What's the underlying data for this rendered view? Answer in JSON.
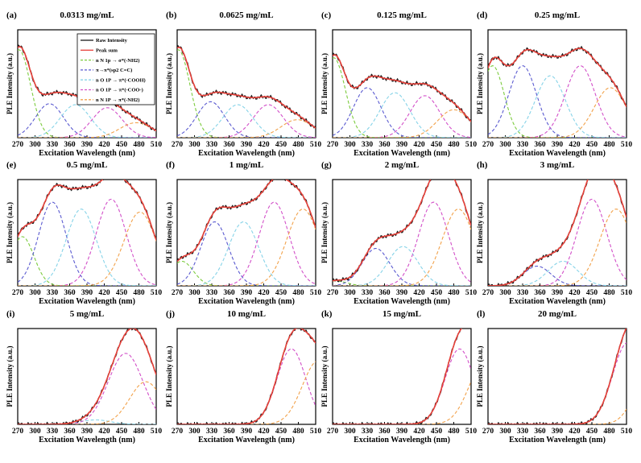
{
  "figure": {
    "colors": {
      "raw": "#1a1a1a",
      "sum": "#e8413a",
      "nh2_a": "#7ccb3e",
      "sp2": "#5a5ad0",
      "cooh": "#86d3e8",
      "coo": "#d24fc8",
      "nh2_b": "#f2a24b"
    }
  },
  "chart_data": [
    {
      "label": "(a)",
      "title": "0.0313 mg/mL",
      "type": "line",
      "xlabel": "Excitation Wavelength (nm)",
      "ylabel": "PLE Intensity (a.u.)",
      "xlim": [
        270,
        510
      ],
      "ylim": [
        0,
        1.08
      ],
      "xticks": [
        "270",
        "300",
        "330",
        "360",
        "390",
        "420",
        "450",
        "480",
        "510"
      ],
      "legend": {
        "position": "top-right",
        "entries": [
          "Raw Intensity",
          "Peak sum",
          "n N 1p → σ*(-NH2)",
          "π→π*(sp2 C=C)",
          "n O 1P → π*(-COOH)",
          "n O 1P → π*(-COO-)",
          "n N 1P → π*(-NH2)"
        ]
      },
      "series": [
        {
          "name": "Raw Intensity",
          "style": "solid",
          "color_key": "raw",
          "peak_sum": true
        },
        {
          "name": "Peak sum",
          "style": "solid",
          "color_key": "sum",
          "peak_sum": true
        },
        {
          "name": "nN1p→σ*(-NH2)",
          "style": "dashed",
          "color_key": "nh2_a",
          "center": 272,
          "width": 20,
          "amp": 0.88
        },
        {
          "name": "π→π*(sp2 C=C)",
          "style": "dashed",
          "color_key": "sp2",
          "center": 325,
          "width": 24,
          "amp": 0.34
        },
        {
          "name": "nO1P→π*(-COOH)",
          "style": "dashed",
          "color_key": "cooh",
          "center": 370,
          "width": 26,
          "amp": 0.33
        },
        {
          "name": "nO1P→π*(-COO-)",
          "style": "dashed",
          "color_key": "coo",
          "center": 425,
          "width": 26,
          "amp": 0.3
        },
        {
          "name": "nN1P→π*(-NH2)",
          "style": "dashed",
          "color_key": "nh2_b",
          "center": 475,
          "width": 28,
          "amp": 0.15
        }
      ]
    },
    {
      "label": "(b)",
      "title": "0.0625 mg/mL",
      "type": "line",
      "xlabel": "Excitation Wavelength (nm)",
      "ylabel": "PLE Intensity (a.u.)",
      "xlim": [
        270,
        510
      ],
      "ylim": [
        0,
        1.08
      ],
      "xticks": [
        "270",
        "300",
        "330",
        "360",
        "390",
        "420",
        "450",
        "480",
        "510"
      ],
      "series": [
        {
          "name": "Raw Intensity",
          "style": "solid",
          "color_key": "raw",
          "peak_sum": true
        },
        {
          "name": "Peak sum",
          "style": "solid",
          "color_key": "sum",
          "peak_sum": true
        },
        {
          "name": "nN1p→σ*(-NH2)",
          "style": "dashed",
          "color_key": "nh2_a",
          "center": 272,
          "width": 20,
          "amp": 0.88
        },
        {
          "name": "π→π*(sp2 C=C)",
          "style": "dashed",
          "color_key": "sp2",
          "center": 328,
          "width": 24,
          "amp": 0.36
        },
        {
          "name": "nO1P→π*(-COOH)",
          "style": "dashed",
          "color_key": "cooh",
          "center": 375,
          "width": 26,
          "amp": 0.33
        },
        {
          "name": "nO1P→π*(-COO-)",
          "style": "dashed",
          "color_key": "coo",
          "center": 428,
          "width": 26,
          "amp": 0.33
        },
        {
          "name": "nN1P→π*(-NH2)",
          "style": "dashed",
          "color_key": "nh2_b",
          "center": 478,
          "width": 28,
          "amp": 0.18
        }
      ]
    },
    {
      "label": "(c)",
      "title": "0.125 mg/mL",
      "type": "line",
      "xlabel": "Excitation Wavelength (nm)",
      "ylabel": "PLE Intensity (a.u.)",
      "xlim": [
        270,
        510
      ],
      "ylim": [
        0,
        1.08
      ],
      "xticks": [
        "270",
        "300",
        "330",
        "360",
        "390",
        "420",
        "450",
        "480",
        "510"
      ],
      "series": [
        {
          "name": "Raw Intensity",
          "style": "solid",
          "color_key": "raw",
          "peak_sum": true
        },
        {
          "name": "Peak sum",
          "style": "solid",
          "color_key": "sum",
          "peak_sum": true
        },
        {
          "name": "nN1p→σ*(-NH2)",
          "style": "dashed",
          "color_key": "nh2_a",
          "center": 272,
          "width": 20,
          "amp": 0.8
        },
        {
          "name": "π→π*(sp2 C=C)",
          "style": "dashed",
          "color_key": "sp2",
          "center": 330,
          "width": 24,
          "amp": 0.5
        },
        {
          "name": "nO1P→π*(-COOH)",
          "style": "dashed",
          "color_key": "cooh",
          "center": 378,
          "width": 26,
          "amp": 0.45
        },
        {
          "name": "nO1P→π*(-COO-)",
          "style": "dashed",
          "color_key": "coo",
          "center": 430,
          "width": 26,
          "amp": 0.42
        },
        {
          "name": "nN1P→π*(-NH2)",
          "style": "dashed",
          "color_key": "nh2_b",
          "center": 480,
          "width": 28,
          "amp": 0.28
        }
      ]
    },
    {
      "label": "(d)",
      "title": "0.25 mg/mL",
      "type": "line",
      "xlabel": "Excitation Wavelength (nm)",
      "ylabel": "PLE Intensity (a.u.)",
      "xlim": [
        270,
        510
      ],
      "ylim": [
        0,
        1.08
      ],
      "xticks": [
        "270",
        "300",
        "330",
        "360",
        "390",
        "420",
        "450",
        "480",
        "510"
      ],
      "series": [
        {
          "name": "Raw Intensity",
          "style": "solid",
          "color_key": "raw",
          "peak_sum": true
        },
        {
          "name": "Peak sum",
          "style": "solid",
          "color_key": "sum",
          "peak_sum": true
        },
        {
          "name": "nN1p→σ*(-NH2)",
          "style": "dashed",
          "color_key": "nh2_a",
          "center": 278,
          "width": 20,
          "amp": 0.72
        },
        {
          "name": "π→π*(sp2 C=C)",
          "style": "dashed",
          "color_key": "sp2",
          "center": 330,
          "width": 24,
          "amp": 0.72
        },
        {
          "name": "nO1P→π*(-COOH)",
          "style": "dashed",
          "color_key": "cooh",
          "center": 378,
          "width": 26,
          "amp": 0.62
        },
        {
          "name": "nO1P→π*(-COO-)",
          "style": "dashed",
          "color_key": "coo",
          "center": 430,
          "width": 26,
          "amp": 0.72
        },
        {
          "name": "nN1P→π*(-NH2)",
          "style": "dashed",
          "color_key": "nh2_b",
          "center": 482,
          "width": 28,
          "amp": 0.5
        }
      ]
    },
    {
      "label": "(e)",
      "title": "0.5 mg/mL",
      "type": "line",
      "xlabel": "Excitation Wavelength (nm)",
      "ylabel": "PLE Intensity (a.u.)",
      "xlim": [
        270,
        510
      ],
      "ylim": [
        0,
        1.08
      ],
      "xticks": [
        "270",
        "300",
        "330",
        "360",
        "390",
        "420",
        "450",
        "480",
        "510"
      ],
      "series": [
        {
          "name": "Raw Intensity",
          "style": "solid",
          "color_key": "raw",
          "peak_sum": true
        },
        {
          "name": "Peak sum",
          "style": "solid",
          "color_key": "sum",
          "peak_sum": true
        },
        {
          "name": "nN1p→σ*(-NH2)",
          "style": "dashed",
          "color_key": "nh2_a",
          "center": 278,
          "width": 20,
          "amp": 0.5
        },
        {
          "name": "π→π*(sp2 C=C)",
          "style": "dashed",
          "color_key": "sp2",
          "center": 330,
          "width": 24,
          "amp": 0.85
        },
        {
          "name": "nO1P→π*(-COOH)",
          "style": "dashed",
          "color_key": "cooh",
          "center": 380,
          "width": 26,
          "amp": 0.78
        },
        {
          "name": "nO1P→π*(-COO-)",
          "style": "dashed",
          "color_key": "coo",
          "center": 432,
          "width": 26,
          "amp": 0.88
        },
        {
          "name": "nN1P→π*(-NH2)",
          "style": "dashed",
          "color_key": "nh2_b",
          "center": 482,
          "width": 28,
          "amp": 0.75
        }
      ]
    },
    {
      "label": "(f)",
      "title": "1 mg/mL",
      "type": "line",
      "xlabel": "Excitation Wavelength (nm)",
      "ylabel": "PLE Intensity (a.u.)",
      "xlim": [
        270,
        510
      ],
      "ylim": [
        0,
        1.08
      ],
      "xticks": [
        "270",
        "300",
        "330",
        "360",
        "390",
        "420",
        "450",
        "480",
        "510"
      ],
      "series": [
        {
          "name": "Raw Intensity",
          "style": "solid",
          "color_key": "raw",
          "peak_sum": true
        },
        {
          "name": "Peak sum",
          "style": "solid",
          "color_key": "sum",
          "peak_sum": true
        },
        {
          "name": "nN1p→σ*(-NH2)",
          "style": "dashed",
          "color_key": "nh2_a",
          "center": 278,
          "width": 20,
          "amp": 0.25
        },
        {
          "name": "π→π*(sp2 C=C)",
          "style": "dashed",
          "color_key": "sp2",
          "center": 335,
          "width": 24,
          "amp": 0.65
        },
        {
          "name": "nO1P→π*(-COOH)",
          "style": "dashed",
          "color_key": "cooh",
          "center": 385,
          "width": 26,
          "amp": 0.65
        },
        {
          "name": "nO1P→π*(-COO-)",
          "style": "dashed",
          "color_key": "coo",
          "center": 438,
          "width": 26,
          "amp": 0.85
        },
        {
          "name": "nN1P→π*(-NH2)",
          "style": "dashed",
          "color_key": "nh2_b",
          "center": 488,
          "width": 28,
          "amp": 0.78
        }
      ]
    },
    {
      "label": "(g)",
      "title": "2 mg/mL",
      "type": "line",
      "xlabel": "Excitation Wavelength (nm)",
      "ylabel": "PLE Intensity (a.u.)",
      "xlim": [
        270,
        510
      ],
      "ylim": [
        0,
        1.08
      ],
      "xticks": [
        "270",
        "300",
        "330",
        "360",
        "390",
        "420",
        "450",
        "480",
        "510"
      ],
      "series": [
        {
          "name": "Raw Intensity",
          "style": "solid",
          "color_key": "raw",
          "peak_sum": true
        },
        {
          "name": "Peak sum",
          "style": "solid",
          "color_key": "sum",
          "peak_sum": true
        },
        {
          "name": "nN1p→σ*(-NH2)",
          "style": "dashed",
          "color_key": "nh2_a",
          "center": 275,
          "width": 20,
          "amp": 0.05
        },
        {
          "name": "π→π*(sp2 C=C)",
          "style": "dashed",
          "color_key": "sp2",
          "center": 345,
          "width": 24,
          "amp": 0.38
        },
        {
          "name": "nO1P→π*(-COOH)",
          "style": "dashed",
          "color_key": "cooh",
          "center": 392,
          "width": 26,
          "amp": 0.4
        },
        {
          "name": "nO1P→π*(-COO-)",
          "style": "dashed",
          "color_key": "coo",
          "center": 445,
          "width": 26,
          "amp": 0.85
        },
        {
          "name": "nN1P→π*(-NH2)",
          "style": "dashed",
          "color_key": "nh2_b",
          "center": 488,
          "width": 28,
          "amp": 0.78
        }
      ]
    },
    {
      "label": "(h)",
      "title": "3 mg/mL",
      "type": "line",
      "xlabel": "Excitation Wavelength (nm)",
      "ylabel": "PLE Intensity (a.u.)",
      "xlim": [
        270,
        510
      ],
      "ylim": [
        0,
        1.08
      ],
      "xticks": [
        "270",
        "300",
        "330",
        "360",
        "390",
        "420",
        "450",
        "480",
        "510"
      ],
      "series": [
        {
          "name": "Raw Intensity",
          "style": "solid",
          "color_key": "raw",
          "peak_sum": true
        },
        {
          "name": "Peak sum",
          "style": "solid",
          "color_key": "sum",
          "peak_sum": true
        },
        {
          "name": "π→π*(sp2 C=C)",
          "style": "dashed",
          "color_key": "sp2",
          "center": 355,
          "width": 24,
          "amp": 0.2
        },
        {
          "name": "nO1P→π*(-COOH)",
          "style": "dashed",
          "color_key": "cooh",
          "center": 400,
          "width": 26,
          "amp": 0.25
        },
        {
          "name": "nO1P→π*(-COO-)",
          "style": "dashed",
          "color_key": "coo",
          "center": 450,
          "width": 26,
          "amp": 0.88
        },
        {
          "name": "nN1P→π*(-NH2)",
          "style": "dashed",
          "color_key": "nh2_b",
          "center": 492,
          "width": 28,
          "amp": 0.78
        }
      ]
    },
    {
      "label": "(i)",
      "title": "5 mg/mL",
      "type": "line",
      "xlabel": "Excitation Wavelength (nm)",
      "ylabel": "PLE Intensity (a.u.)",
      "xlim": [
        270,
        510
      ],
      "ylim": [
        0,
        1.08
      ],
      "xticks": [
        "270",
        "300",
        "330",
        "360",
        "390",
        "420",
        "450",
        "480",
        "510"
      ],
      "series": [
        {
          "name": "Raw Intensity",
          "style": "solid",
          "color_key": "raw",
          "peak_sum": true
        },
        {
          "name": "Peak sum",
          "style": "solid",
          "color_key": "sum",
          "peak_sum": true
        },
        {
          "name": "nO1P→π*(-COOH)",
          "style": "dashed",
          "color_key": "cooh",
          "center": 405,
          "width": 26,
          "amp": 0.05
        },
        {
          "name": "nO1P→π*(-COO-)",
          "style": "dashed",
          "color_key": "coo",
          "center": 457,
          "width": 30,
          "amp": 0.8
        },
        {
          "name": "nN1P→π*(-NH2)",
          "style": "dashed",
          "color_key": "nh2_b",
          "center": 492,
          "width": 28,
          "amp": 0.48
        }
      ]
    },
    {
      "label": "(j)",
      "title": "10 mg/mL",
      "type": "line",
      "xlabel": "Excitation Wavelength (nm)",
      "ylabel": "PLE Intensity (a.u.)",
      "xlim": [
        270,
        510
      ],
      "ylim": [
        0,
        1.08
      ],
      "xticks": [
        "270",
        "300",
        "330",
        "360",
        "390",
        "420",
        "450",
        "480",
        "510"
      ],
      "series": [
        {
          "name": "Raw Intensity",
          "style": "solid",
          "color_key": "raw",
          "peak_sum": true
        },
        {
          "name": "Peak sum",
          "style": "solid",
          "color_key": "sum",
          "peak_sum": true
        },
        {
          "name": "nO1P→π*(-COO-)",
          "style": "dashed",
          "color_key": "coo",
          "center": 468,
          "width": 25,
          "amp": 0.85
        },
        {
          "name": "nN1P→π*(-NH2)",
          "style": "dashed",
          "color_key": "nh2_b",
          "center": 515,
          "width": 28,
          "amp": 0.72
        }
      ]
    },
    {
      "label": "(k)",
      "title": "15 mg/mL",
      "type": "line",
      "xlabel": "Excitation Wavelength (nm)",
      "ylabel": "PLE Intensity (a.u.)",
      "xlim": [
        270,
        510
      ],
      "ylim": [
        0,
        1.08
      ],
      "xticks": [
        "270",
        "300",
        "330",
        "360",
        "390",
        "420",
        "450",
        "480",
        "510"
      ],
      "series": [
        {
          "name": "Raw Intensity",
          "style": "solid",
          "color_key": "raw",
          "peak_sum": true
        },
        {
          "name": "Peak sum",
          "style": "solid",
          "color_key": "sum",
          "peak_sum": true
        },
        {
          "name": "nO1P→π*(-COO-)",
          "style": "dashed",
          "color_key": "coo",
          "center": 490,
          "width": 25,
          "amp": 0.85
        },
        {
          "name": "nN1P→π*(-NH2)",
          "style": "dashed",
          "color_key": "nh2_b",
          "center": 535,
          "width": 28,
          "amp": 0.72
        }
      ]
    },
    {
      "label": "(l)",
      "title": "20 mg/mL",
      "type": "line",
      "xlabel": "Excitation Wavelength (nm)",
      "ylabel": "PLE Intensity (a.u.)",
      "xlim": [
        270,
        510
      ],
      "ylim": [
        0,
        1.08
      ],
      "xticks": [
        "270",
        "300",
        "330",
        "360",
        "390",
        "420",
        "450",
        "480",
        "510"
      ],
      "series": [
        {
          "name": "Raw Intensity",
          "style": "solid",
          "color_key": "raw",
          "peak_sum": true
        },
        {
          "name": "Peak sum",
          "style": "solid",
          "color_key": "sum",
          "peak_sum": true
        },
        {
          "name": "nO1P→π*(-COO-)",
          "style": "dashed",
          "color_key": "coo",
          "center": 512,
          "width": 26,
          "amp": 0.92
        },
        {
          "name": "nN1P→π*(-NH2)",
          "style": "dashed",
          "color_key": "nh2_b",
          "center": 560,
          "width": 28,
          "amp": 0.85
        }
      ]
    }
  ]
}
